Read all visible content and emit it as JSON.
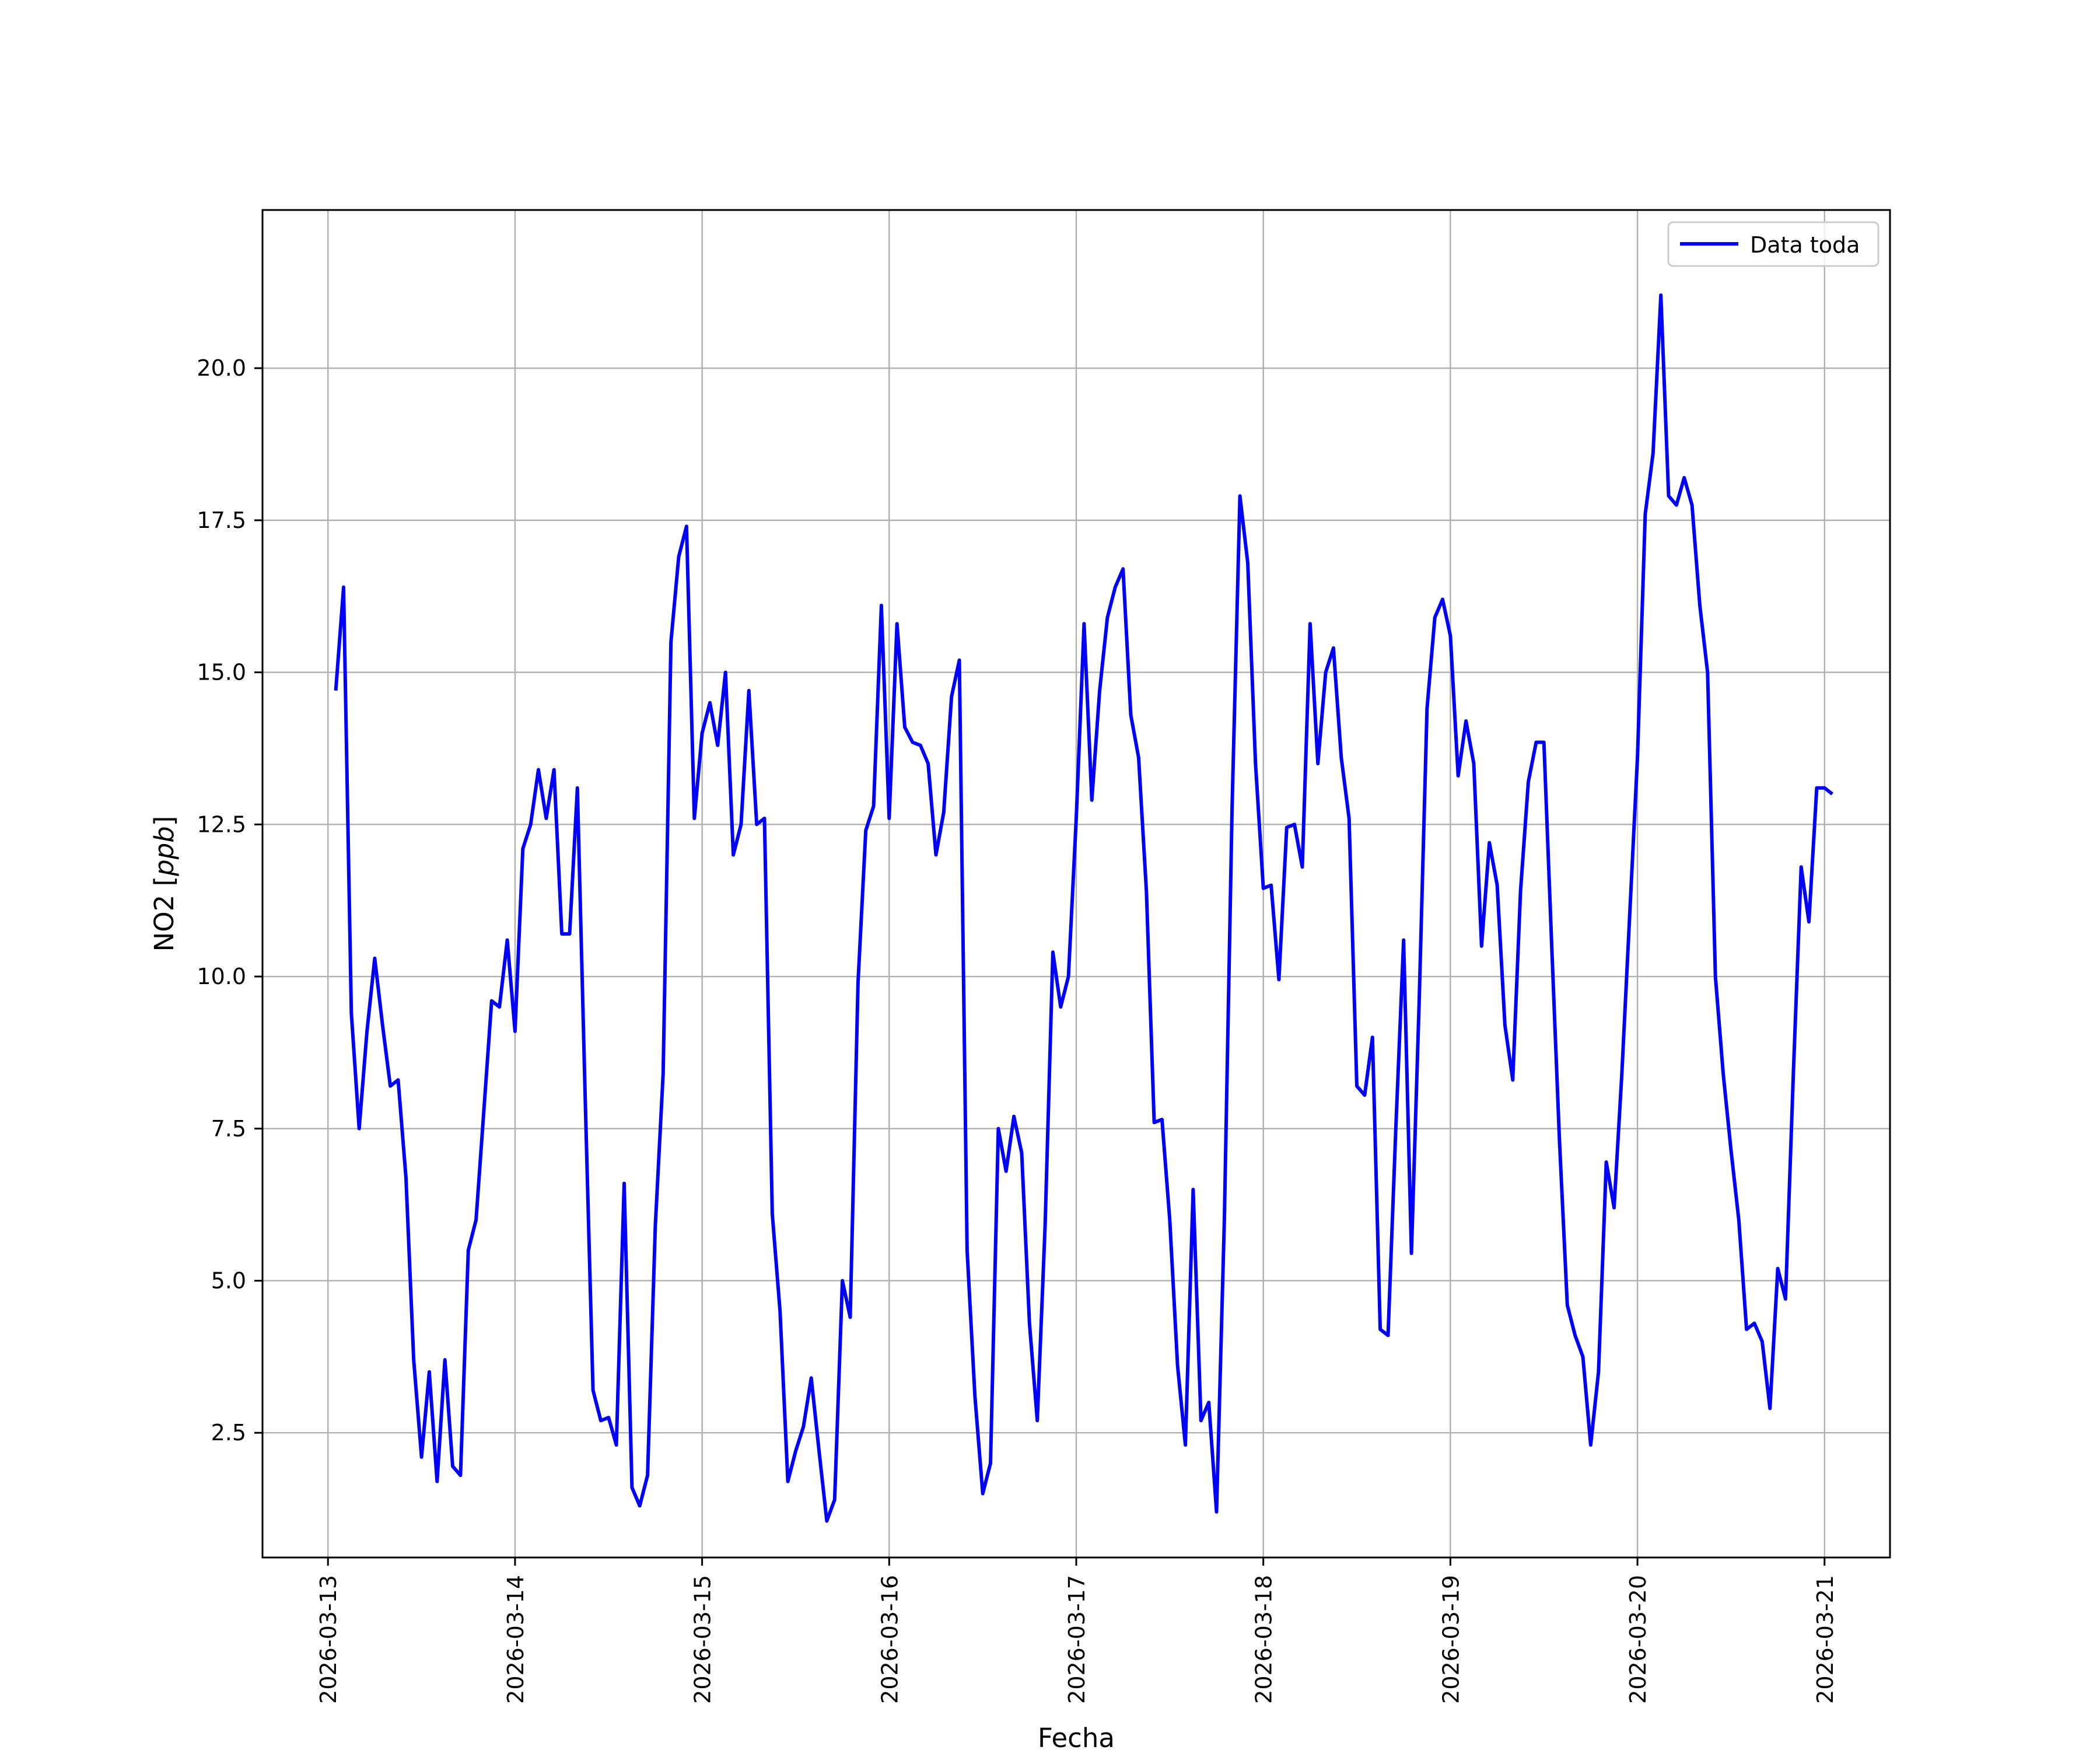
{
  "chart_data": {
    "type": "line",
    "xlabel": "Fecha",
    "ylabel": "NO2 [ppb]",
    "ylabel_main": "NO2 [",
    "ylabel_unit": "ppb",
    "ylabel_close": "]",
    "xlim": [
      "2026-03-12 15:36",
      "2026-03-21 08:24"
    ],
    "ylim": [
      0.45,
      22.6
    ],
    "x_ticks": [
      "2026-03-13",
      "2026-03-14",
      "2026-03-15",
      "2026-03-16",
      "2026-03-17",
      "2026-03-18",
      "2026-03-19",
      "2026-03-20",
      "2026-03-21"
    ],
    "y_ticks": [
      "2.5",
      "5.0",
      "7.5",
      "10.0",
      "12.5",
      "15.0",
      "17.5",
      "20.0"
    ],
    "grid": true,
    "legend_position": "top-right",
    "series": [
      {
        "name": "Data toda",
        "color": "#0000ff",
        "interval": "1 hour",
        "start": "2026-03-13 01:00",
        "values": [
          14.7,
          16.4,
          9.4,
          7.5,
          9.1,
          10.3,
          9.2,
          8.2,
          8.3,
          6.7,
          3.7,
          2.1,
          3.5,
          1.7,
          3.7,
          1.95,
          1.8,
          5.5,
          6.0,
          7.8,
          9.6,
          9.5,
          10.6,
          9.1,
          12.1,
          12.5,
          13.4,
          12.6,
          13.4,
          10.7,
          10.7,
          13.1,
          8.0,
          3.2,
          2.7,
          2.75,
          2.3,
          6.6,
          1.6,
          1.3,
          1.8,
          5.9,
          8.4,
          15.5,
          16.9,
          17.4,
          12.6,
          14.0,
          14.5,
          13.8,
          15.0,
          12.0,
          12.5,
          14.7,
          12.5,
          12.6,
          6.1,
          4.5,
          1.7,
          2.2,
          2.6,
          3.4,
          2.2,
          1.05,
          1.4,
          5.0,
          4.4,
          9.9,
          12.4,
          12.8,
          16.1,
          12.6,
          15.8,
          14.1,
          13.85,
          13.8,
          13.5,
          12.0,
          12.7,
          14.6,
          15.2,
          5.5,
          3.1,
          1.5,
          2.0,
          7.5,
          6.8,
          7.7,
          7.1,
          4.3,
          2.7,
          5.9,
          10.4,
          9.5,
          10.0,
          12.6,
          15.8,
          12.9,
          14.7,
          15.9,
          16.4,
          16.7,
          14.3,
          13.6,
          11.4,
          7.6,
          7.65,
          6.0,
          3.6,
          2.3,
          6.5,
          2.7,
          3.0,
          1.2,
          6.0,
          12.8,
          17.9,
          16.8,
          13.5,
          11.45,
          11.5,
          9.95,
          12.45,
          12.5,
          11.8,
          15.8,
          13.5,
          15.0,
          15.4,
          13.6,
          12.6,
          8.2,
          8.05,
          9.0,
          4.2,
          4.1,
          7.5,
          10.6,
          5.45,
          9.6,
          14.4,
          15.9,
          16.2,
          15.6,
          13.3,
          14.2,
          13.5,
          10.5,
          12.2,
          11.5,
          9.2,
          8.3,
          11.4,
          13.2,
          13.85,
          13.85,
          10.5,
          7.3,
          4.6,
          4.1,
          3.75,
          2.3,
          3.5,
          6.95,
          6.2,
          8.4,
          11.0,
          13.6,
          17.6,
          18.6,
          21.2,
          17.9,
          17.75,
          18.2,
          17.75,
          16.1,
          15.0,
          10.0,
          8.4,
          7.15,
          6.0,
          4.2,
          4.3,
          4.0,
          2.9,
          5.2,
          4.7,
          8.4,
          11.8,
          10.9,
          13.1,
          13.1,
          13.0
        ]
      }
    ]
  }
}
